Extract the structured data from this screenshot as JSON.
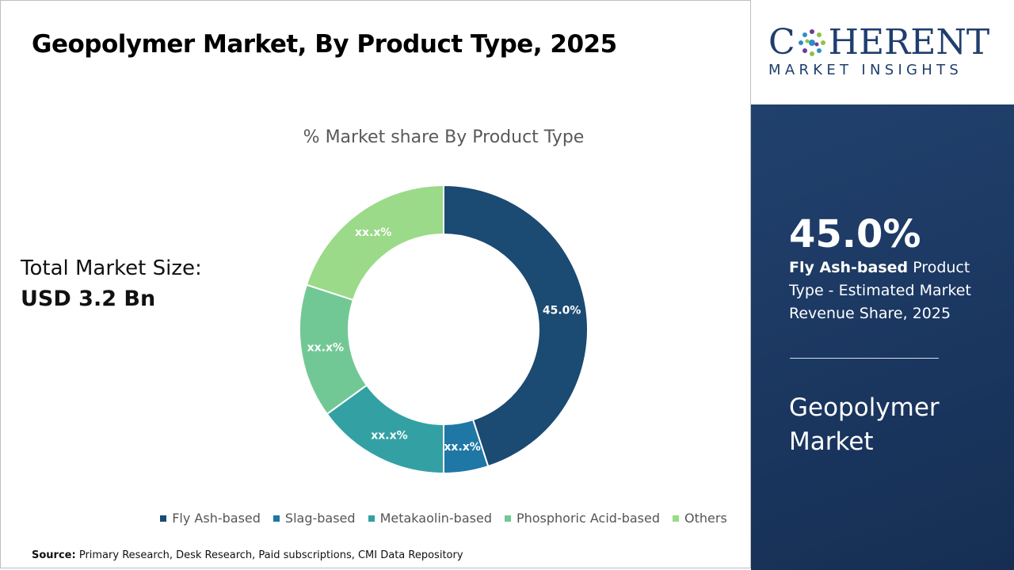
{
  "header": {
    "title": "Geopolymer Market, By Product Type, 2025"
  },
  "market_size": {
    "label": "Total Market Size:",
    "value": "USD 3.2 Bn"
  },
  "logo": {
    "name_start": "C",
    "name_end": "HERENT",
    "tagline": "MARKET INSIGHTS"
  },
  "sidebar": {
    "share": "45.0%",
    "segment": "Fly Ash-based",
    "description": "Product Type - Estimated Market Revenue Share, 2025",
    "market": "Geopolymer Market"
  },
  "source": {
    "label": "Source:",
    "text": "Primary Research, Desk Research, Paid subscriptions, CMI Data Repository"
  },
  "chart_data": {
    "type": "donut",
    "title": "% Market share By Product Type",
    "categories": [
      "Fly Ash-based",
      "Slag-based",
      "Metakaolin-based",
      "Phosphoric Acid-based",
      "Others"
    ],
    "values": [
      45.0,
      5,
      15,
      15,
      20
    ],
    "value_labels": [
      "45.0%",
      "xx.x%",
      "xx.x%",
      "xx.x%",
      "xx.x%"
    ],
    "colors": [
      "#1b4a72",
      "#1f77a6",
      "#33a1a3",
      "#72c894",
      "#9bda88"
    ],
    "legend": "bottom"
  }
}
